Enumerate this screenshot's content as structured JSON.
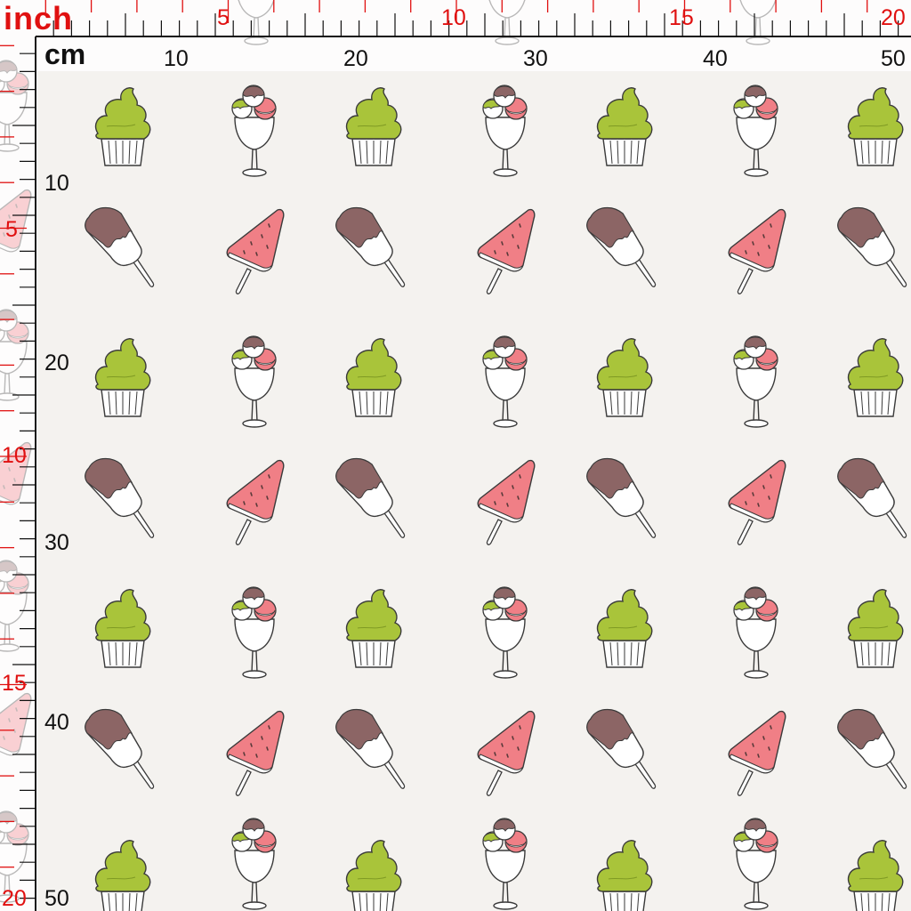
{
  "ruler": {
    "inch_label": "inch",
    "cm_label": "cm",
    "top_inch_numbers": [
      "5",
      "10",
      "15",
      "20"
    ],
    "top_cm_numbers": [
      "10",
      "20",
      "30",
      "40",
      "50"
    ],
    "left_cm_numbers": [
      "10",
      "20",
      "30",
      "40",
      "50"
    ],
    "left_inch_numbers": [
      "5",
      "10",
      "15",
      "20"
    ]
  },
  "pattern": {
    "motifs": [
      "cupcake-icon",
      "ice-cream-sundae-icon",
      "chocolate-popsicle-icon",
      "watermelon-popsicle-icon"
    ],
    "colors": {
      "background": "#f4f2ef",
      "cream_green": "#a9c43a",
      "chocolate": "#8c6565",
      "watermelon": "#f07f86",
      "outline": "#3a3a3a",
      "ruler_red": "#e01010"
    }
  }
}
